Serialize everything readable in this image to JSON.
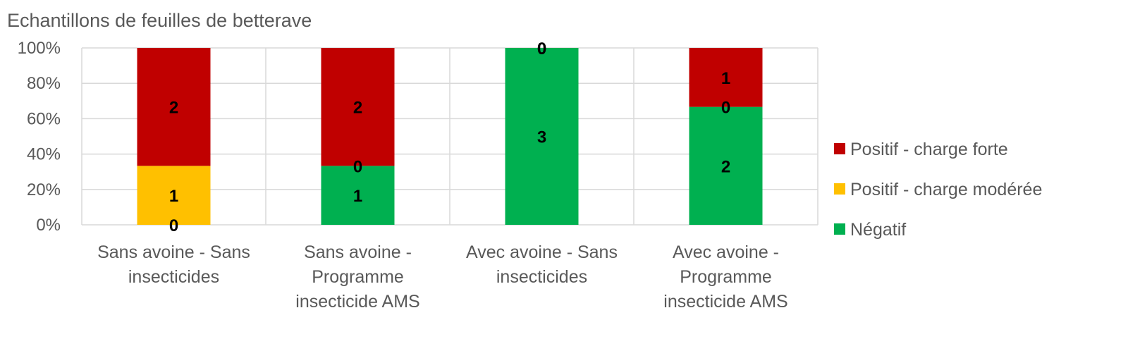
{
  "chart_data": {
    "type": "bar",
    "stacked": "percent",
    "title": "Echantillons de feuilles de betterave",
    "categories": [
      [
        "Sans avoine - Sans",
        "insecticides"
      ],
      [
        "Sans avoine -",
        "Programme",
        "insecticide AMS"
      ],
      [
        "Avec avoine - Sans",
        "insecticides"
      ],
      [
        "Avec avoine -",
        "Programme",
        "insecticide AMS"
      ]
    ],
    "series": [
      {
        "name": "Négatif",
        "color": "#00b050",
        "values": [
          0,
          1,
          3,
          2
        ]
      },
      {
        "name": "Positif - charge modérée",
        "color": "#ffc000",
        "values": [
          1,
          0,
          0,
          0
        ]
      },
      {
        "name": "Positif - charge forte",
        "color": "#c00000",
        "values": [
          2,
          2,
          0,
          1
        ]
      }
    ],
    "ylim": [
      0,
      100
    ],
    "yticks": [
      "0%",
      "20%",
      "40%",
      "60%",
      "80%",
      "100%"
    ],
    "grid": true,
    "legend_position": "right",
    "legend_order": [
      "Positif - charge forte",
      "Positif - charge modérée",
      "Négatif"
    ]
  }
}
